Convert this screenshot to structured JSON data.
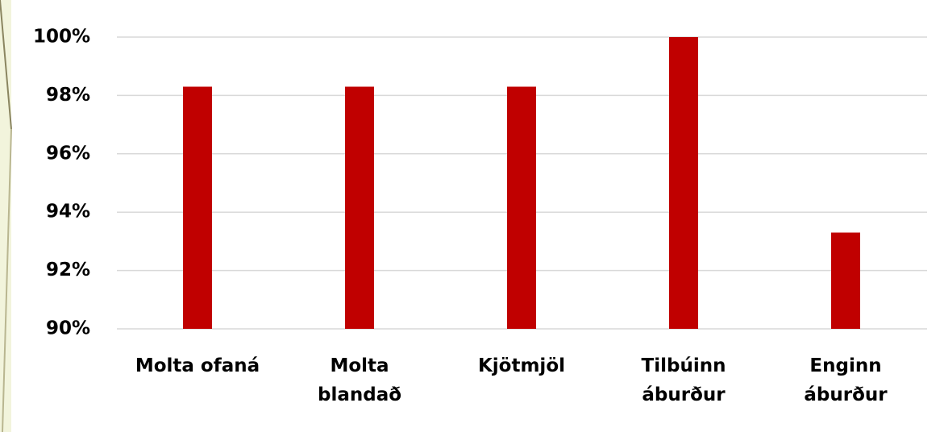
{
  "chart_data": {
    "type": "bar",
    "categories": [
      "Molta ofaná",
      "Molta\nblandað",
      "Kjötmjöl",
      "Tilbúinn\náburður",
      "Enginn\náburður"
    ],
    "values": [
      98.3,
      98.3,
      98.3,
      100,
      93.3
    ],
    "color": "#c00000",
    "ylim": [
      90,
      100
    ],
    "yticks": [
      {
        "value": 90,
        "label": "90%"
      },
      {
        "value": 92,
        "label": "92%"
      },
      {
        "value": 94,
        "label": "94%"
      },
      {
        "value": 96,
        "label": "96%"
      },
      {
        "value": 98,
        "label": "98%"
      },
      {
        "value": 100,
        "label": "100%"
      }
    ],
    "grid": true
  }
}
